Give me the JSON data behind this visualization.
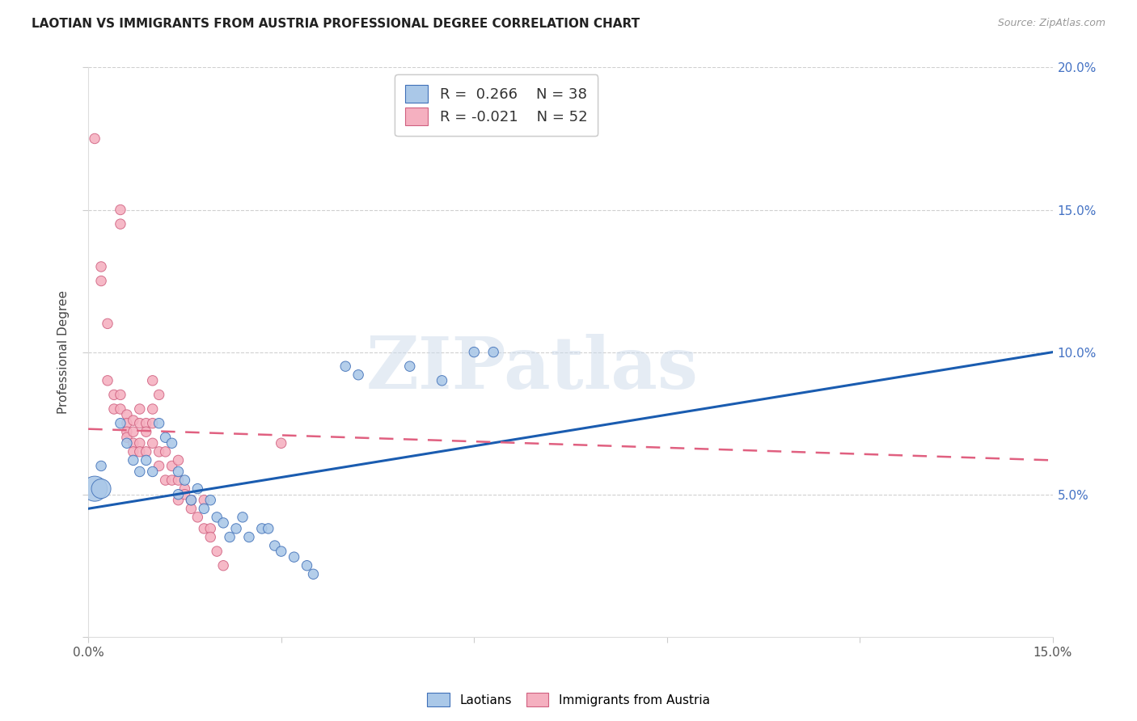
{
  "title": "LAOTIAN VS IMMIGRANTS FROM AUSTRIA PROFESSIONAL DEGREE CORRELATION CHART",
  "source": "Source: ZipAtlas.com",
  "ylabel": "Professional Degree",
  "xlim": [
    0.0,
    0.15
  ],
  "ylim": [
    0.0,
    0.2
  ],
  "xticks": [
    0.0,
    0.03,
    0.06,
    0.09,
    0.12,
    0.15
  ],
  "xtick_labels": [
    "0.0%",
    "",
    "",
    "",
    "",
    "15.0%"
  ],
  "yticks": [
    0.0,
    0.05,
    0.1,
    0.15,
    0.2
  ],
  "ytick_labels_right": [
    "",
    "5.0%",
    "10.0%",
    "15.0%",
    "20.0%"
  ],
  "legend_blue_R": "0.266",
  "legend_blue_N": "38",
  "legend_pink_R": "-0.021",
  "legend_pink_N": "52",
  "blue_dot_color": "#aac8e8",
  "blue_edge_color": "#4070b8",
  "pink_dot_color": "#f5b0c0",
  "pink_edge_color": "#d06080",
  "blue_line_color": "#1a5cb0",
  "pink_line_color": "#e06080",
  "watermark": "ZIPatlas",
  "blue_scatter": [
    [
      0.001,
      0.052
    ],
    [
      0.002,
      0.052
    ],
    [
      0.002,
      0.06
    ],
    [
      0.005,
      0.075
    ],
    [
      0.006,
      0.068
    ],
    [
      0.007,
      0.062
    ],
    [
      0.008,
      0.058
    ],
    [
      0.009,
      0.062
    ],
    [
      0.01,
      0.058
    ],
    [
      0.011,
      0.075
    ],
    [
      0.012,
      0.07
    ],
    [
      0.013,
      0.068
    ],
    [
      0.014,
      0.058
    ],
    [
      0.014,
      0.05
    ],
    [
      0.015,
      0.055
    ],
    [
      0.016,
      0.048
    ],
    [
      0.017,
      0.052
    ],
    [
      0.018,
      0.045
    ],
    [
      0.019,
      0.048
    ],
    [
      0.02,
      0.042
    ],
    [
      0.021,
      0.04
    ],
    [
      0.022,
      0.035
    ],
    [
      0.023,
      0.038
    ],
    [
      0.024,
      0.042
    ],
    [
      0.025,
      0.035
    ],
    [
      0.027,
      0.038
    ],
    [
      0.028,
      0.038
    ],
    [
      0.029,
      0.032
    ],
    [
      0.03,
      0.03
    ],
    [
      0.032,
      0.028
    ],
    [
      0.034,
      0.025
    ],
    [
      0.035,
      0.022
    ],
    [
      0.04,
      0.095
    ],
    [
      0.042,
      0.092
    ],
    [
      0.05,
      0.095
    ],
    [
      0.055,
      0.09
    ],
    [
      0.06,
      0.1
    ],
    [
      0.063,
      0.1
    ]
  ],
  "blue_scatter_sizes": [
    500,
    300,
    80,
    80,
    80,
    80,
    80,
    80,
    80,
    80,
    80,
    80,
    80,
    80,
    80,
    80,
    80,
    80,
    80,
    80,
    80,
    80,
    80,
    80,
    80,
    80,
    80,
    80,
    80,
    80,
    80,
    80,
    80,
    80,
    80,
    80,
    80,
    80
  ],
  "pink_scatter": [
    [
      0.001,
      0.175
    ],
    [
      0.002,
      0.13
    ],
    [
      0.002,
      0.125
    ],
    [
      0.003,
      0.11
    ],
    [
      0.003,
      0.09
    ],
    [
      0.004,
      0.085
    ],
    [
      0.004,
      0.08
    ],
    [
      0.005,
      0.145
    ],
    [
      0.005,
      0.085
    ],
    [
      0.005,
      0.08
    ],
    [
      0.006,
      0.078
    ],
    [
      0.006,
      0.075
    ],
    [
      0.006,
      0.072
    ],
    [
      0.006,
      0.07
    ],
    [
      0.007,
      0.068
    ],
    [
      0.007,
      0.065
    ],
    [
      0.007,
      0.076
    ],
    [
      0.007,
      0.072
    ],
    [
      0.008,
      0.068
    ],
    [
      0.008,
      0.065
    ],
    [
      0.008,
      0.08
    ],
    [
      0.008,
      0.075
    ],
    [
      0.009,
      0.075
    ],
    [
      0.009,
      0.072
    ],
    [
      0.009,
      0.065
    ],
    [
      0.01,
      0.09
    ],
    [
      0.01,
      0.08
    ],
    [
      0.01,
      0.075
    ],
    [
      0.01,
      0.068
    ],
    [
      0.011,
      0.085
    ],
    [
      0.011,
      0.065
    ],
    [
      0.011,
      0.06
    ],
    [
      0.012,
      0.065
    ],
    [
      0.012,
      0.055
    ],
    [
      0.013,
      0.06
    ],
    [
      0.013,
      0.055
    ],
    [
      0.014,
      0.048
    ],
    [
      0.014,
      0.062
    ],
    [
      0.015,
      0.052
    ],
    [
      0.015,
      0.05
    ],
    [
      0.016,
      0.045
    ],
    [
      0.016,
      0.048
    ],
    [
      0.017,
      0.042
    ],
    [
      0.018,
      0.048
    ],
    [
      0.018,
      0.038
    ],
    [
      0.019,
      0.038
    ],
    [
      0.019,
      0.035
    ],
    [
      0.02,
      0.03
    ],
    [
      0.021,
      0.025
    ],
    [
      0.005,
      0.15
    ],
    [
      0.014,
      0.055
    ],
    [
      0.03,
      0.068
    ]
  ],
  "pink_scatter_sizes": [
    80,
    80,
    80,
    80,
    80,
    80,
    80,
    80,
    80,
    80,
    80,
    80,
    80,
    80,
    80,
    80,
    80,
    80,
    80,
    80,
    80,
    80,
    80,
    80,
    80,
    80,
    80,
    80,
    80,
    80,
    80,
    80,
    80,
    80,
    80,
    80,
    80,
    80,
    80,
    80,
    80,
    80,
    80,
    80,
    80,
    80,
    80,
    80,
    80,
    80,
    80,
    80
  ],
  "blue_trendline_x": [
    0.0,
    0.15
  ],
  "blue_trendline_y": [
    0.045,
    0.1
  ],
  "pink_trendline_x": [
    0.0,
    0.15
  ],
  "pink_trendline_y": [
    0.073,
    0.062
  ]
}
